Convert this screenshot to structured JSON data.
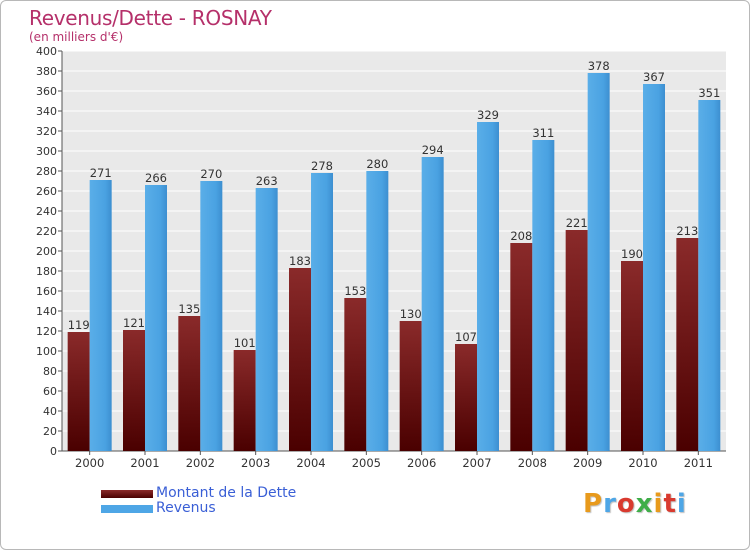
{
  "header": {
    "title": "Revenus/Dette - ROSNAY",
    "subtitle": "(en milliers d'€)"
  },
  "legend": [
    {
      "label": "Montant de la Dette",
      "color": "#6b0f0f"
    },
    {
      "label": "Revenus",
      "color": "#4ea6e6"
    }
  ],
  "logo": {
    "text": "Proxiti",
    "colors": [
      "#e89a1c",
      "#4ea6e6",
      "#d93a2f",
      "#3fae49",
      "#e89a1c",
      "#d93a2f",
      "#4ea6e6"
    ]
  },
  "chart_data": {
    "type": "bar",
    "title": "Revenus/Dette - ROSNAY",
    "subtitle": "(en milliers d'€)",
    "categories": [
      "2000",
      "2001",
      "2002",
      "2003",
      "2004",
      "2005",
      "2006",
      "2007",
      "2008",
      "2009",
      "2010",
      "2011"
    ],
    "series": [
      {
        "name": "Montant de la Dette",
        "color": "#7a1414",
        "values": [
          119,
          121,
          135,
          101,
          183,
          153,
          130,
          107,
          208,
          221,
          190,
          213
        ]
      },
      {
        "name": "Revenus",
        "color": "#4ea6e6",
        "values": [
          271,
          266,
          270,
          263,
          278,
          280,
          294,
          329,
          311,
          378,
          367,
          351
        ]
      }
    ],
    "ylim": [
      0,
      400
    ],
    "ytick_step": 20,
    "grid": true,
    "data_labels": true,
    "legend_position": "bottom-left"
  }
}
